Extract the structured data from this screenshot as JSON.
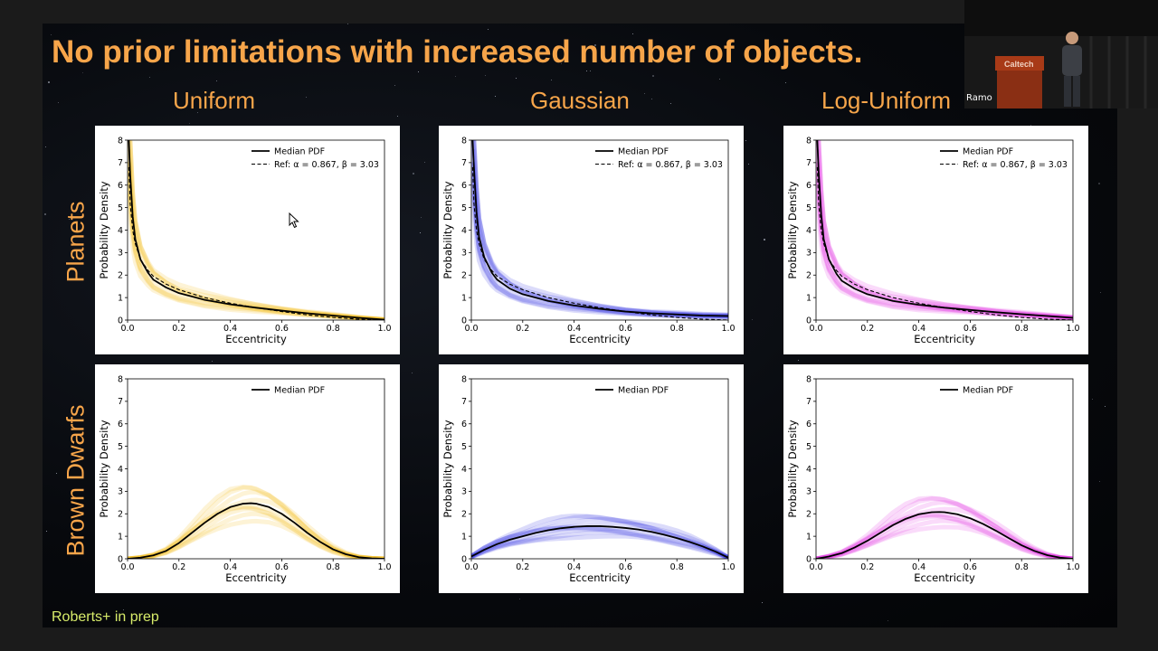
{
  "slide": {
    "title": "No prior limitations with increased number of objects.",
    "column_titles": [
      "Uniform",
      "Gaussian",
      "Log-Uniform"
    ],
    "row_titles": [
      "Planets",
      "Brown Dwarfs"
    ],
    "footnote": "Roberts+ in prep"
  },
  "video": {
    "speaker_label": "Ramo",
    "podium_label": "Caltech"
  },
  "colors": {
    "title_orange": "#f7a54a",
    "footnote_green": "#d8ec6a",
    "uniform": "#f5b400",
    "gaussian": "#1f1fe0",
    "log_uniform": "#e01ee0"
  },
  "chart_data": [
    {
      "type": "line",
      "title": "",
      "xlabel": "Eccentricity",
      "ylabel": "Probability Density",
      "xlim": [
        0,
        1
      ],
      "ylim": [
        0,
        8
      ],
      "xticks": [
        "0.0",
        "0.2",
        "0.4",
        "0.6",
        "0.8",
        "1.0"
      ],
      "yticks": [
        "0",
        "1",
        "2",
        "3",
        "4",
        "5",
        "6",
        "7",
        "8"
      ],
      "legend": "top-right",
      "band_color": "#f5b400",
      "series": [
        {
          "name": "Median PDF",
          "style": "solid",
          "x": [
            0.005,
            0.01,
            0.02,
            0.03,
            0.05,
            0.08,
            0.1,
            0.15,
            0.2,
            0.3,
            0.4,
            0.5,
            0.6,
            0.7,
            0.8,
            0.9,
            1.0
          ],
          "y": [
            8.0,
            6.5,
            4.6,
            3.6,
            2.7,
            2.1,
            1.8,
            1.45,
            1.2,
            0.9,
            0.7,
            0.55,
            0.42,
            0.3,
            0.2,
            0.1,
            0.02
          ]
        },
        {
          "name": "Ref: α = 0.867, β = 3.03",
          "style": "dashed",
          "x": [
            0.005,
            0.01,
            0.02,
            0.03,
            0.05,
            0.08,
            0.1,
            0.15,
            0.2,
            0.3,
            0.4,
            0.5,
            0.6,
            0.7,
            0.8,
            0.9,
            1.0
          ],
          "y": [
            6.8,
            5.2,
            4.0,
            3.4,
            2.7,
            2.2,
            1.95,
            1.6,
            1.35,
            1.0,
            0.75,
            0.55,
            0.38,
            0.23,
            0.12,
            0.04,
            0.0
          ]
        }
      ]
    },
    {
      "type": "line",
      "title": "",
      "xlabel": "Eccentricity",
      "ylabel": "Probability Density",
      "xlim": [
        0,
        1
      ],
      "ylim": [
        0,
        8
      ],
      "xticks": [
        "0.0",
        "0.2",
        "0.4",
        "0.6",
        "0.8",
        "1.0"
      ],
      "yticks": [
        "0",
        "1",
        "2",
        "3",
        "4",
        "5",
        "6",
        "7",
        "8"
      ],
      "legend": "top-right",
      "band_color": "#1f1fe0",
      "series": [
        {
          "name": "Median PDF",
          "style": "solid",
          "x": [
            0.005,
            0.01,
            0.02,
            0.03,
            0.05,
            0.08,
            0.1,
            0.15,
            0.2,
            0.3,
            0.4,
            0.5,
            0.6,
            0.7,
            0.8,
            0.9,
            1.0
          ],
          "y": [
            8.0,
            6.8,
            4.8,
            3.7,
            2.8,
            2.1,
            1.8,
            1.4,
            1.15,
            0.85,
            0.65,
            0.5,
            0.38,
            0.3,
            0.25,
            0.2,
            0.18
          ]
        },
        {
          "name": "Ref: α = 0.867, β = 3.03",
          "style": "dashed",
          "x": [
            0.005,
            0.01,
            0.02,
            0.03,
            0.05,
            0.08,
            0.1,
            0.15,
            0.2,
            0.3,
            0.4,
            0.5,
            0.6,
            0.7,
            0.8,
            0.9,
            1.0
          ],
          "y": [
            6.8,
            5.2,
            4.0,
            3.4,
            2.7,
            2.2,
            1.95,
            1.6,
            1.35,
            1.0,
            0.75,
            0.55,
            0.38,
            0.23,
            0.12,
            0.04,
            0.0
          ]
        }
      ]
    },
    {
      "type": "line",
      "title": "",
      "xlabel": "Eccentricity",
      "ylabel": "Probability Density",
      "xlim": [
        0,
        1
      ],
      "ylim": [
        0,
        8
      ],
      "xticks": [
        "0.0",
        "0.2",
        "0.4",
        "0.6",
        "0.8",
        "1.0"
      ],
      "yticks": [
        "0",
        "1",
        "2",
        "3",
        "4",
        "5",
        "6",
        "7",
        "8"
      ],
      "legend": "top-right",
      "band_color": "#e01ee0",
      "series": [
        {
          "name": "Median PDF",
          "style": "solid",
          "x": [
            0.005,
            0.01,
            0.02,
            0.03,
            0.05,
            0.08,
            0.1,
            0.15,
            0.2,
            0.3,
            0.4,
            0.5,
            0.6,
            0.7,
            0.8,
            0.9,
            1.0
          ],
          "y": [
            8.0,
            6.6,
            4.7,
            3.6,
            2.7,
            2.05,
            1.75,
            1.4,
            1.15,
            0.85,
            0.68,
            0.55,
            0.45,
            0.35,
            0.26,
            0.18,
            0.1
          ]
        },
        {
          "name": "Ref: α = 0.867, β = 3.03",
          "style": "dashed",
          "x": [
            0.005,
            0.01,
            0.02,
            0.03,
            0.05,
            0.08,
            0.1,
            0.15,
            0.2,
            0.3,
            0.4,
            0.5,
            0.6,
            0.7,
            0.8,
            0.9,
            1.0
          ],
          "y": [
            6.8,
            5.2,
            4.0,
            3.4,
            2.7,
            2.2,
            1.95,
            1.6,
            1.35,
            1.0,
            0.75,
            0.55,
            0.38,
            0.23,
            0.12,
            0.04,
            0.0
          ]
        }
      ]
    },
    {
      "type": "line",
      "title": "",
      "xlabel": "Eccentricity",
      "ylabel": "Probability Density",
      "xlim": [
        0,
        1
      ],
      "ylim": [
        0,
        8
      ],
      "xticks": [
        "0.0",
        "0.2",
        "0.4",
        "0.6",
        "0.8",
        "1.0"
      ],
      "yticks": [
        "0",
        "1",
        "2",
        "3",
        "4",
        "5",
        "6",
        "7",
        "8"
      ],
      "legend": "top-right",
      "band_color": "#f5b400",
      "series": [
        {
          "name": "Median PDF",
          "style": "solid",
          "x": [
            0.0,
            0.05,
            0.1,
            0.15,
            0.2,
            0.25,
            0.3,
            0.35,
            0.4,
            0.45,
            0.48,
            0.5,
            0.55,
            0.6,
            0.65,
            0.7,
            0.75,
            0.8,
            0.85,
            0.9,
            0.95,
            1.0
          ],
          "y": [
            0.0,
            0.05,
            0.15,
            0.35,
            0.7,
            1.15,
            1.6,
            2.0,
            2.3,
            2.45,
            2.47,
            2.45,
            2.3,
            2.0,
            1.6,
            1.15,
            0.75,
            0.42,
            0.2,
            0.07,
            0.02,
            0.0
          ]
        }
      ]
    },
    {
      "type": "line",
      "title": "",
      "xlabel": "Eccentricity",
      "ylabel": "Probability Density",
      "xlim": [
        0,
        1
      ],
      "ylim": [
        0,
        8
      ],
      "xticks": [
        "0.0",
        "0.2",
        "0.4",
        "0.6",
        "0.8",
        "1.0"
      ],
      "yticks": [
        "0",
        "1",
        "2",
        "3",
        "4",
        "5",
        "6",
        "7",
        "8"
      ],
      "legend": "top-right",
      "band_color": "#1f1fe0",
      "series": [
        {
          "name": "Median PDF",
          "style": "solid",
          "x": [
            0.0,
            0.05,
            0.1,
            0.15,
            0.2,
            0.25,
            0.3,
            0.35,
            0.4,
            0.45,
            0.5,
            0.55,
            0.6,
            0.65,
            0.7,
            0.75,
            0.8,
            0.85,
            0.9,
            0.95,
            1.0
          ],
          "y": [
            0.1,
            0.4,
            0.65,
            0.85,
            1.0,
            1.15,
            1.27,
            1.36,
            1.42,
            1.45,
            1.45,
            1.42,
            1.37,
            1.3,
            1.2,
            1.07,
            0.92,
            0.75,
            0.55,
            0.32,
            0.05
          ]
        }
      ]
    },
    {
      "type": "line",
      "title": "",
      "xlabel": "Eccentricity",
      "ylabel": "Probability Density",
      "xlim": [
        0,
        1
      ],
      "ylim": [
        0,
        8
      ],
      "xticks": [
        "0.0",
        "0.2",
        "0.4",
        "0.6",
        "0.8",
        "1.0"
      ],
      "yticks": [
        "0",
        "1",
        "2",
        "3",
        "4",
        "5",
        "6",
        "7",
        "8"
      ],
      "legend": "top-right",
      "band_color": "#e01ee0",
      "series": [
        {
          "name": "Median PDF",
          "style": "solid",
          "x": [
            0.0,
            0.05,
            0.1,
            0.15,
            0.2,
            0.25,
            0.3,
            0.35,
            0.4,
            0.45,
            0.48,
            0.5,
            0.55,
            0.6,
            0.65,
            0.7,
            0.75,
            0.8,
            0.85,
            0.9,
            0.95,
            1.0
          ],
          "y": [
            0.0,
            0.1,
            0.25,
            0.5,
            0.8,
            1.15,
            1.5,
            1.78,
            1.98,
            2.07,
            2.08,
            2.07,
            1.98,
            1.8,
            1.55,
            1.25,
            0.92,
            0.6,
            0.35,
            0.16,
            0.05,
            0.0
          ]
        }
      ]
    }
  ]
}
